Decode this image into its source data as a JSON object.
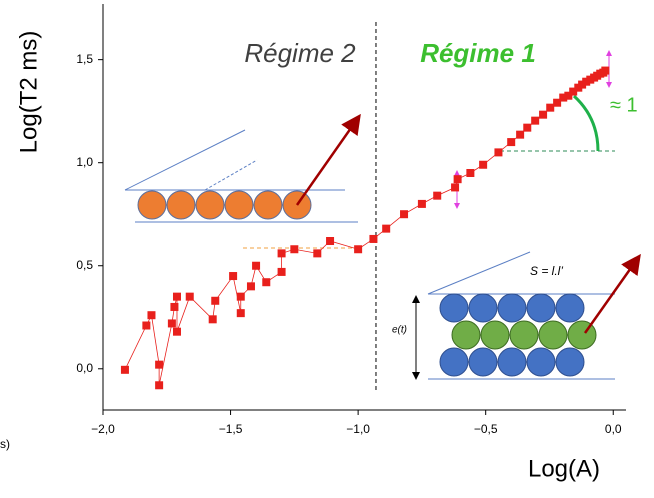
{
  "chart_data": {
    "type": "scatter",
    "x_label": "Log(A)",
    "y_label": "Log(T2 ms)",
    "annotations": {
      "regime2": "Régime 2",
      "regime1": "Régime 1",
      "slope": "≈ 1",
      "surface": "S = l.l’",
      "thickness": "e(t)",
      "fragment": "s)"
    },
    "x": [
      -1.914,
      -1.83,
      -1.81,
      -1.78,
      -1.78,
      -1.73,
      -1.72,
      -1.71,
      -1.71,
      -1.66,
      -1.57,
      -1.56,
      -1.49,
      -1.46,
      -1.46,
      -1.42,
      -1.4,
      -1.36,
      -1.3,
      -1.3,
      -1.25,
      -1.16,
      -1.11,
      -1.0,
      -0.94,
      -0.89,
      -0.82,
      -0.75,
      -0.69,
      -0.62,
      -0.61,
      -0.56,
      -0.51,
      -0.45,
      -0.4,
      -0.365,
      -0.337,
      -0.306,
      -0.275,
      -0.247,
      -0.22,
      -0.196,
      -0.176,
      -0.157,
      -0.137,
      -0.122,
      -0.106,
      -0.09,
      -0.075,
      -0.063,
      -0.051,
      -0.039,
      -0.031
    ],
    "y": [
      -0.005,
      0.21,
      0.26,
      0.02,
      -0.08,
      0.22,
      0.3,
      0.35,
      0.18,
      0.35,
      0.24,
      0.33,
      0.45,
      0.27,
      0.35,
      0.4,
      0.5,
      0.42,
      0.47,
      0.56,
      0.58,
      0.56,
      0.62,
      0.58,
      0.63,
      0.68,
      0.75,
      0.8,
      0.84,
      0.88,
      0.92,
      0.95,
      0.99,
      1.05,
      1.1,
      1.136,
      1.17,
      1.204,
      1.233,
      1.267,
      1.291,
      1.316,
      1.325,
      1.345,
      1.364,
      1.379,
      1.393,
      1.403,
      1.413,
      1.422,
      1.432,
      1.437,
      1.447
    ],
    "color": "#e8201c",
    "xlim": [
      -2.0,
      0.05
    ],
    "ylim": [
      -0.2,
      1.77
    ],
    "xticks": [
      {
        "value": -2.0,
        "label": "−2,0"
      },
      {
        "value": -1.5,
        "label": "−1,5"
      },
      {
        "value": -1.0,
        "label": "−1,0"
      },
      {
        "value": -0.5,
        "label": "−0,5"
      },
      {
        "value": 0.0,
        "label": "0,0"
      }
    ],
    "yticks": [
      {
        "value": 0.0,
        "label": "0,0"
      },
      {
        "value": 0.5,
        "label": "0,5"
      },
      {
        "value": 1.0,
        "label": "1,0"
      },
      {
        "value": 1.5,
        "label": "1,5"
      }
    ],
    "vline": -0.93
  }
}
